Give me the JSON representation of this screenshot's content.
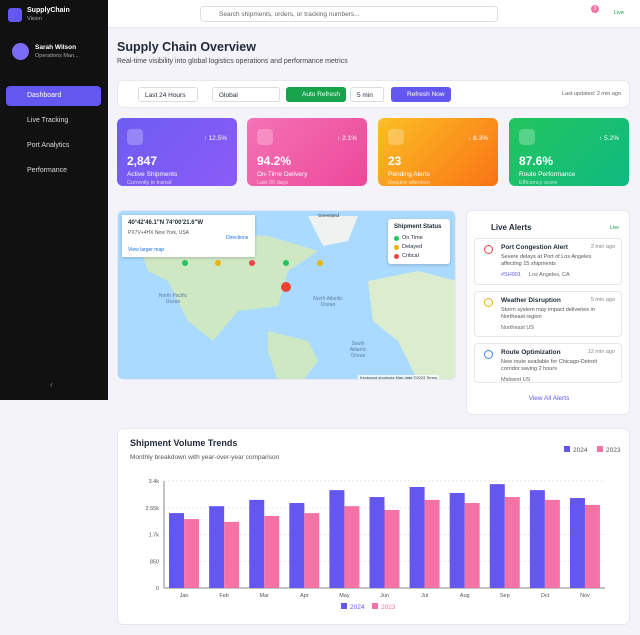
{
  "sidebar": {
    "brand": "SupplyChain",
    "brand_sub": "Vision",
    "user_name": "Sarah Wilson",
    "user_role": "Operations Man...",
    "nav": [
      "Dashboard",
      "Live Tracking",
      "Port Analytics",
      "Performance"
    ]
  },
  "header": {
    "search_placeholder": "Search shipments, orders, or tracking numbers...",
    "notifications": "3",
    "status": "Live"
  },
  "overview": {
    "title": "Supply Chain Overview",
    "subtitle": "Real-time visibility into global logistics operations and performance metrics"
  },
  "filters": {
    "range": "Last 24 Hours",
    "region": "Global",
    "auto_refresh": "Auto Refresh",
    "interval": "5 min",
    "refresh_now": "Refresh Now",
    "updated": "Last updated: 2 min ago"
  },
  "kpis": [
    {
      "change": "12.5%",
      "value": "2,847",
      "label": "Active Shipments",
      "note": "Currently in transit"
    },
    {
      "change": "2.1%",
      "value": "94.2%",
      "label": "On-Time Delivery",
      "note": "Last 30 days"
    },
    {
      "change": "8.3%",
      "value": "23",
      "label": "Pending Alerts",
      "note": "Require attention"
    },
    {
      "change": "5.2%",
      "value": "87.6%",
      "label": "Route Performance",
      "note": "Efficiency score"
    }
  ],
  "map": {
    "coords": "40°42'46.1\"N 74°00'21.6\"W",
    "place": "PX7V+4HX New York, USA",
    "directions": "Directions",
    "larger": "View larger map",
    "greenland": "Greenland",
    "pacific": "North Pacific Ocean",
    "atlantic": "North Atlantic Ocean",
    "south_atlantic": "South Atlantic Ocean",
    "legend_title": "Shipment Status",
    "legend": [
      "On Time",
      "Delayed",
      "Critical"
    ],
    "footer": [
      "Keyboard shortcuts",
      "Map data ©2023",
      "Terms"
    ]
  },
  "alerts": {
    "title": "Live Alerts",
    "live": "Live",
    "items": [
      {
        "title": "Port Congestion Alert",
        "time": "2 min ago",
        "text": "Severe delays at Port of Los Angeles affecting 15 shipments",
        "tag": "#SH001",
        "place": "Los Angeles, CA"
      },
      {
        "title": "Weather Disruption",
        "time": "5 min ago",
        "text": "Storm system may impact deliveries in Northeast region",
        "place": "Northeast US"
      },
      {
        "title": "Route Optimization",
        "time": "12 min ago",
        "text": "New route available for Chicago-Detroit corridor saving 2 hours",
        "place": "Midwest US"
      }
    ],
    "view_all": "View All Alerts"
  },
  "chart_data": {
    "type": "bar",
    "title": "Shipment Volume Trends",
    "subtitle": "Monthly breakdown with year-over-year comparison",
    "categories": [
      "Jan",
      "Feb",
      "Mar",
      "Apr",
      "May",
      "Jun",
      "Jul",
      "Aug",
      "Sep",
      "Oct",
      "Nov"
    ],
    "series": [
      {
        "name": "2024",
        "color": "#6457f0",
        "values": [
          2380,
          2600,
          2800,
          2700,
          3110,
          2890,
          3210,
          3020,
          3300,
          3110,
          2860
        ]
      },
      {
        "name": "2023",
        "color": "#f472a6",
        "values": [
          2190,
          2100,
          2290,
          2380,
          2600,
          2480,
          2800,
          2700,
          2890,
          2800,
          2640
        ]
      }
    ],
    "ylim": [
      0,
      3400
    ],
    "yticks": [
      0,
      850,
      {
        "value": 1700,
        "label": "1.7k"
      },
      {
        "value": 2550,
        "label": "2.55k"
      },
      {
        "value": 3400,
        "label": "3.4k"
      }
    ],
    "grid": true
  }
}
